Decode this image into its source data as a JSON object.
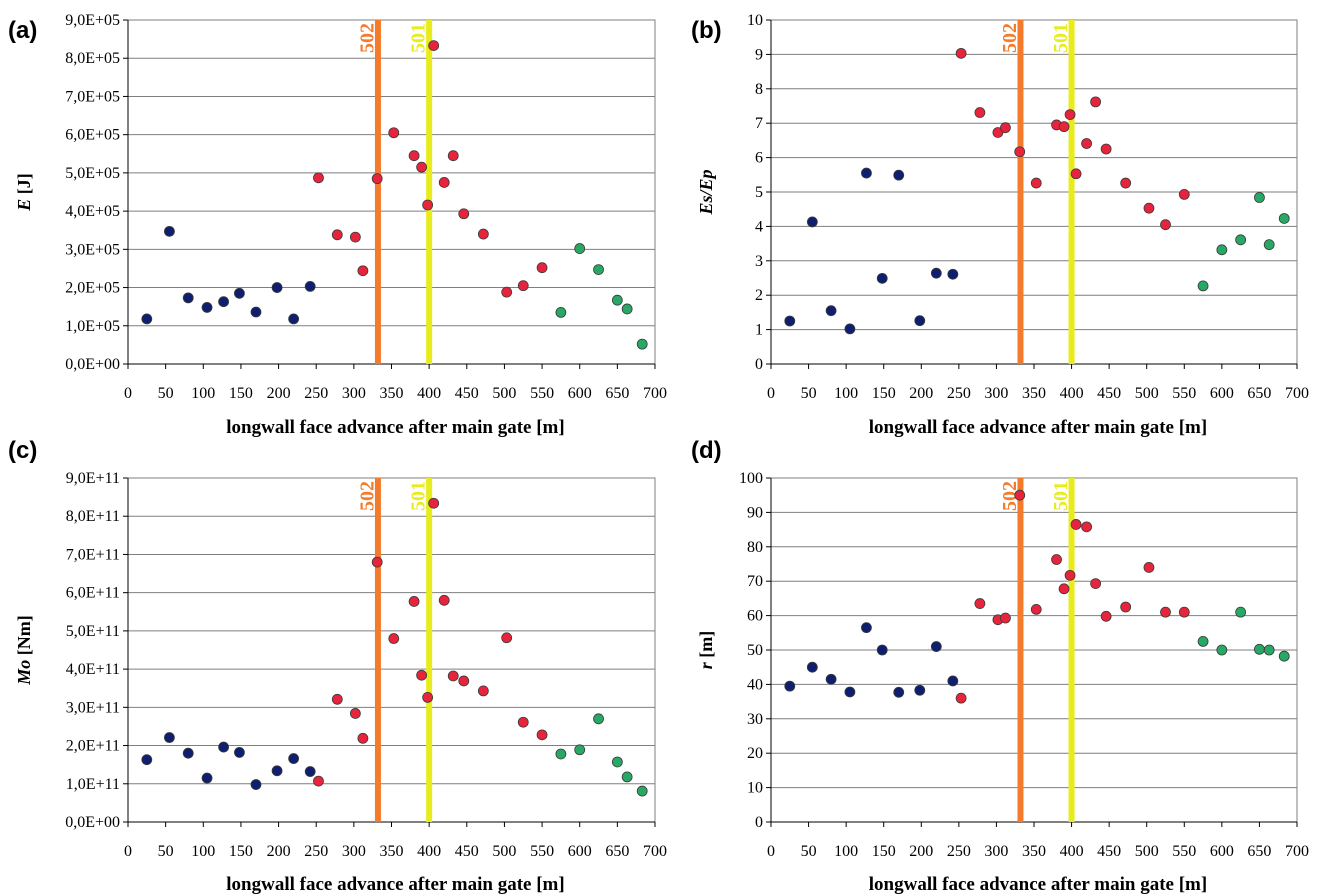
{
  "colors": {
    "line_502": "#f47a2c",
    "line_501": "#e8ec1a",
    "blue": "#0d1f6e",
    "red": "#e8243c",
    "green": "#27a864",
    "grid": "#7f7f7f"
  },
  "chart_data": [
    {
      "panel": "(a)",
      "type": "scatter",
      "ylabel_italic": "E",
      "ylabel_rest": " [J]",
      "xlabel": "longwall face advance after main gate [m]",
      "xlim": [
        0,
        700
      ],
      "xticks": [
        0,
        50,
        100,
        150,
        200,
        250,
        300,
        350,
        400,
        450,
        500,
        550,
        600,
        650,
        700
      ],
      "ylim": [
        0,
        900000
      ],
      "yticks": [
        0,
        100000,
        200000,
        300000,
        400000,
        500000,
        600000,
        700000,
        800000,
        900000
      ],
      "ytick_labels": [
        "0,0E+00",
        "1,0E+05",
        "2,0E+05",
        "3,0E+05",
        "4,0E+05",
        "5,0E+05",
        "6,0E+05",
        "7,0E+05",
        "8,0E+05",
        "9,0E+05"
      ],
      "grid": "horizontal",
      "vlines": [
        {
          "label": "502",
          "x": 332,
          "color": "#f47a2c"
        },
        {
          "label": "501",
          "x": 400,
          "color": "#e8ec1a"
        }
      ],
      "series": [
        {
          "color": "#0d1f6e",
          "points": [
            [
              25,
              118000
            ],
            [
              55,
              347000
            ],
            [
              80,
              173000
            ],
            [
              105,
              148000
            ],
            [
              127,
              163000
            ],
            [
              148,
              185000
            ],
            [
              170,
              136000
            ],
            [
              198,
              200000
            ],
            [
              220,
              118000
            ],
            [
              242,
              203000
            ]
          ]
        },
        {
          "color": "#e8243c",
          "points": [
            [
              253,
              487000
            ],
            [
              278,
              338000
            ],
            [
              302,
              332000
            ],
            [
              312,
              244000
            ],
            [
              331,
              485000
            ],
            [
              353,
              605000
            ],
            [
              380,
              545000
            ],
            [
              390,
              515000
            ],
            [
              398,
              416000
            ],
            [
              406,
              833000
            ],
            [
              420,
              475000
            ],
            [
              432,
              545000
            ],
            [
              446,
              393000
            ],
            [
              472,
              340000
            ],
            [
              503,
              188000
            ],
            [
              525,
              205000
            ],
            [
              550,
              252000
            ]
          ]
        },
        {
          "color": "#27a864",
          "points": [
            [
              575,
              135000
            ],
            [
              600,
              302000
            ],
            [
              625,
              247000
            ],
            [
              650,
              167000
            ],
            [
              663,
              144000
            ],
            [
              683,
              52000
            ]
          ]
        }
      ]
    },
    {
      "panel": "(b)",
      "type": "scatter",
      "ylabel_italic": "Es/Ep",
      "ylabel_rest": "",
      "xlabel": "longwall face advance after main gate [m]",
      "xlim": [
        0,
        700
      ],
      "xticks": [
        0,
        50,
        100,
        150,
        200,
        250,
        300,
        350,
        400,
        450,
        500,
        550,
        600,
        650,
        700
      ],
      "ylim": [
        0,
        10
      ],
      "yticks": [
        0,
        1,
        2,
        3,
        4,
        5,
        6,
        7,
        8,
        9,
        10
      ],
      "ytick_labels": [
        "0",
        "1",
        "2",
        "3",
        "4",
        "5",
        "6",
        "7",
        "8",
        "9",
        "10"
      ],
      "grid": "horizontal",
      "vlines": [
        {
          "label": "502",
          "x": 332,
          "color": "#f47a2c"
        },
        {
          "label": "501",
          "x": 400,
          "color": "#e8ec1a"
        }
      ],
      "series": [
        {
          "color": "#0d1f6e",
          "points": [
            [
              25,
              1.25
            ],
            [
              55,
              4.13
            ],
            [
              80,
              1.55
            ],
            [
              105,
              1.02
            ],
            [
              127,
              5.55
            ],
            [
              148,
              2.49
            ],
            [
              170,
              5.49
            ],
            [
              198,
              1.26
            ],
            [
              220,
              2.64
            ],
            [
              242,
              2.61
            ]
          ]
        },
        {
          "color": "#e8243c",
          "points": [
            [
              253,
              9.03
            ],
            [
              278,
              7.31
            ],
            [
              302,
              6.73
            ],
            [
              312,
              6.87
            ],
            [
              331,
              6.17
            ],
            [
              353,
              5.26
            ],
            [
              380,
              6.95
            ],
            [
              390,
              6.9
            ],
            [
              398,
              7.25
            ],
            [
              406,
              5.53
            ],
            [
              420,
              6.41
            ],
            [
              432,
              7.62
            ],
            [
              446,
              6.25
            ],
            [
              472,
              5.26
            ],
            [
              503,
              4.53
            ],
            [
              525,
              4.05
            ],
            [
              550,
              4.93
            ]
          ]
        },
        {
          "color": "#27a864",
          "points": [
            [
              575,
              2.27
            ],
            [
              600,
              3.32
            ],
            [
              625,
              3.61
            ],
            [
              650,
              4.84
            ],
            [
              663,
              3.47
            ],
            [
              683,
              4.23
            ]
          ]
        }
      ]
    },
    {
      "panel": "(c)",
      "type": "scatter",
      "ylabel_italic": "Mo",
      "ylabel_rest": " [Nm]",
      "xlabel": "longwall face advance after main gate [m]",
      "xlim": [
        0,
        700
      ],
      "xticks": [
        0,
        50,
        100,
        150,
        200,
        250,
        300,
        350,
        400,
        450,
        500,
        550,
        600,
        650,
        700
      ],
      "ylim": [
        0,
        900000000000
      ],
      "yticks": [
        0,
        100000000000,
        200000000000,
        300000000000,
        400000000000,
        500000000000,
        600000000000,
        700000000000,
        800000000000,
        900000000000
      ],
      "ytick_labels": [
        "0,0E+00",
        "1,0E+11",
        "2,0E+11",
        "3,0E+11",
        "4,0E+11",
        "5,0E+11",
        "6,0E+11",
        "7,0E+11",
        "8,0E+11",
        "9,0E+11"
      ],
      "grid": "horizontal",
      "vlines": [
        {
          "label": "502",
          "x": 332,
          "color": "#f47a2c"
        },
        {
          "label": "501",
          "x": 400,
          "color": "#e8ec1a"
        }
      ],
      "series": [
        {
          "color": "#0d1f6e",
          "points": [
            [
              25,
              163000000000
            ],
            [
              55,
              221000000000
            ],
            [
              80,
              180000000000
            ],
            [
              105,
              115000000000
            ],
            [
              127,
              196000000000
            ],
            [
              148,
              182000000000
            ],
            [
              170,
              98000000000
            ],
            [
              198,
              134000000000
            ],
            [
              220,
              166000000000
            ],
            [
              242,
              132000000000
            ]
          ]
        },
        {
          "color": "#e8243c",
          "points": [
            [
              253,
              107000000000
            ],
            [
              278,
              321000000000
            ],
            [
              302,
              284000000000
            ],
            [
              312,
              219000000000
            ],
            [
              331,
              680000000000
            ],
            [
              353,
              480000000000
            ],
            [
              380,
              577000000000
            ],
            [
              390,
              384000000000
            ],
            [
              398,
              326000000000
            ],
            [
              406,
              834000000000
            ],
            [
              420,
              580000000000
            ],
            [
              432,
              382000000000
            ],
            [
              446,
              369000000000
            ],
            [
              472,
              343000000000
            ],
            [
              503,
              482000000000
            ],
            [
              525,
              261000000000
            ],
            [
              550,
              228000000000
            ]
          ]
        },
        {
          "color": "#27a864",
          "points": [
            [
              575,
              178000000000
            ],
            [
              600,
              189000000000
            ],
            [
              625,
              270000000000
            ],
            [
              650,
              157000000000
            ],
            [
              663,
              118000000000
            ],
            [
              683,
              81000000000
            ]
          ]
        }
      ]
    },
    {
      "panel": "(d)",
      "type": "scatter",
      "ylabel_italic": "r",
      "ylabel_rest": " [m]",
      "xlabel": "longwall face advance after main gate [m]",
      "xlim": [
        0,
        700
      ],
      "xticks": [
        0,
        50,
        100,
        150,
        200,
        250,
        300,
        350,
        400,
        450,
        500,
        550,
        600,
        650,
        700
      ],
      "ylim": [
        0,
        100
      ],
      "yticks": [
        0,
        10,
        20,
        30,
        40,
        50,
        60,
        70,
        80,
        90,
        100
      ],
      "ytick_labels": [
        "0",
        "10",
        "20",
        "30",
        "40",
        "50",
        "60",
        "70",
        "80",
        "90",
        "100"
      ],
      "grid": "horizontal",
      "vlines": [
        {
          "label": "502",
          "x": 332,
          "color": "#f47a2c"
        },
        {
          "label": "501",
          "x": 400,
          "color": "#e8ec1a"
        }
      ],
      "series": [
        {
          "color": "#0d1f6e",
          "points": [
            [
              25,
              39.5
            ],
            [
              55,
              45
            ],
            [
              80,
              41.5
            ],
            [
              105,
              37.8
            ],
            [
              127,
              56.5
            ],
            [
              148,
              50
            ],
            [
              170,
              37.7
            ],
            [
              198,
              38.3
            ],
            [
              220,
              51
            ],
            [
              242,
              41
            ]
          ]
        },
        {
          "color": "#e8243c",
          "points": [
            [
              253,
              36
            ],
            [
              278,
              63.5
            ],
            [
              302,
              58.8
            ],
            [
              312,
              59.3
            ],
            [
              331,
              95
            ],
            [
              353,
              61.8
            ],
            [
              380,
              76.3
            ],
            [
              390,
              67.8
            ],
            [
              398,
              71.7
            ],
            [
              406,
              86.5
            ],
            [
              420,
              85.8
            ],
            [
              432,
              69.3
            ],
            [
              446,
              59.8
            ],
            [
              472,
              62.5
            ],
            [
              503,
              74
            ],
            [
              525,
              61
            ],
            [
              550,
              61
            ]
          ]
        },
        {
          "color": "#27a864",
          "points": [
            [
              575,
              52.5
            ],
            [
              600,
              50
            ],
            [
              625,
              61
            ],
            [
              650,
              50.2
            ],
            [
              663,
              50
            ],
            [
              683,
              48.2
            ]
          ]
        }
      ]
    }
  ]
}
